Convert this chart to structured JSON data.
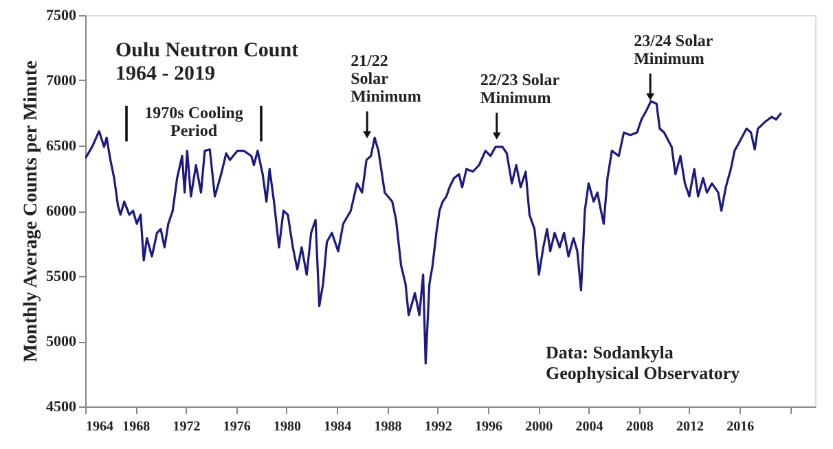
{
  "chart_data": {
    "type": "line",
    "title": "Oulu Neutron Count",
    "subtitle": "1964 - 2019",
    "ylabel": "Monthly Average Counts per Minute",
    "x": [
      1964.0,
      1964.55,
      1965.1,
      1965.5,
      1965.7,
      1966.0,
      1966.3,
      1966.6,
      1966.8,
      1967.1,
      1967.5,
      1967.8,
      1968.1,
      1968.4,
      1968.65,
      1968.9,
      1969.3,
      1969.7,
      1970.0,
      1970.3,
      1970.6,
      1970.95,
      1971.3,
      1971.7,
      1971.9,
      1972.1,
      1972.4,
      1972.8,
      1973.2,
      1973.5,
      1973.9,
      1974.3,
      1974.8,
      1975.2,
      1975.5,
      1976.1,
      1976.6,
      1977.2,
      1977.4,
      1977.7,
      1978.1,
      1978.4,
      1978.65,
      1979.0,
      1979.4,
      1979.75,
      1980.1,
      1980.5,
      1980.85,
      1981.2,
      1981.6,
      1981.95,
      1982.3,
      1982.6,
      1982.9,
      1983.2,
      1983.6,
      1984.1,
      1984.5,
      1985.1,
      1985.6,
      1986.0,
      1986.35,
      1986.7,
      1987.0,
      1987.3,
      1987.8,
      1988.4,
      1988.7,
      1989.1,
      1989.45,
      1989.7,
      1990.2,
      1990.55,
      1990.85,
      1991.05,
      1991.35,
      1991.6,
      1991.9,
      1992.15,
      1992.4,
      1992.7,
      1992.95,
      1993.3,
      1993.7,
      1993.95,
      1994.3,
      1994.8,
      1995.3,
      1995.8,
      1996.2,
      1996.6,
      1997.15,
      1997.5,
      1997.9,
      1998.25,
      1998.6,
      1999.0,
      1999.3,
      1999.7,
      2000.05,
      2000.4,
      2000.7,
      2000.95,
      2001.3,
      2001.7,
      2002.05,
      2002.4,
      2002.8,
      2003.1,
      2003.4,
      2003.7,
      2004.0,
      2004.4,
      2004.7,
      2004.9,
      2005.2,
      2005.5,
      2005.85,
      2006.4,
      2006.8,
      2007.3,
      2007.85,
      2008.2,
      2008.6,
      2008.95,
      2009.4,
      2009.65,
      2010.0,
      2010.6,
      2010.9,
      2011.3,
      2011.65,
      2012.0,
      2012.4,
      2012.7,
      2013.1,
      2013.4,
      2013.8,
      2014.3,
      2014.55,
      2014.9,
      2015.3,
      2015.6,
      2016.0,
      2016.55,
      2016.9,
      2017.2,
      2017.45,
      2018.0,
      2018.55,
      2018.9,
      2019.3
    ],
    "series": [
      {
        "color": "#1a1a80",
        "values": [
          6400,
          6490,
          6610,
          6490,
          6560,
          6390,
          6250,
          6040,
          5970,
          6070,
          5970,
          6000,
          5900,
          5970,
          5620,
          5790,
          5650,
          5830,
          5860,
          5720,
          5900,
          6000,
          6250,
          6420,
          6140,
          6460,
          6110,
          6350,
          6140,
          6460,
          6470,
          6110,
          6280,
          6440,
          6390,
          6460,
          6460,
          6420,
          6350,
          6460,
          6280,
          6070,
          6320,
          6070,
          5720,
          6000,
          5970,
          5720,
          5550,
          5720,
          5510,
          5830,
          5930,
          5270,
          5440,
          5760,
          5830,
          5690,
          5900,
          6000,
          6210,
          6140,
          6390,
          6420,
          6560,
          6460,
          6140,
          6070,
          5930,
          5580,
          5440,
          5200,
          5370,
          5200,
          5510,
          4830,
          5440,
          5580,
          5830,
          6000,
          6070,
          6110,
          6180,
          6250,
          6280,
          6180,
          6320,
          6300,
          6350,
          6460,
          6420,
          6490,
          6490,
          6440,
          6210,
          6350,
          6180,
          6300,
          5970,
          5860,
          5510,
          5720,
          5860,
          5690,
          5830,
          5720,
          5830,
          5650,
          5790,
          5690,
          5390,
          6000,
          6210,
          6070,
          6140,
          6040,
          5900,
          6250,
          6460,
          6420,
          6600,
          6580,
          6600,
          6700,
          6770,
          6840,
          6820,
          6630,
          6600,
          6490,
          6280,
          6420,
          6210,
          6110,
          6320,
          6110,
          6250,
          6140,
          6210,
          6140,
          6000,
          6180,
          6320,
          6460,
          6530,
          6630,
          6600,
          6470,
          6630,
          6680,
          6720,
          6700,
          6750
        ]
      }
    ],
    "xlim": [
      1964,
      2022
    ],
    "xticks": [
      1964,
      1968,
      1972,
      1976,
      1980,
      1984,
      1988,
      1992,
      1996,
      2000,
      2004,
      2008,
      2012,
      2016,
      {
        "value": 2020,
        "label": null
      }
    ],
    "ylim": [
      4500,
      7500
    ],
    "yticks": [
      4500,
      5000,
      5500,
      6000,
      6500,
      7000,
      7500
    ],
    "grid": false,
    "marker": "none",
    "line_style": "solid",
    "annotations": [
      "1970s Cooling\nPeriod",
      {
        "text": "21/22\nSolar\nMinimum",
        "x": 1986.4,
        "y": 6530
      },
      {
        "text": "22/23 Solar\nMinimum",
        "x": 1996.7,
        "y": 6520
      },
      {
        "text": "23/24 Solar\nMinimum",
        "x": 2008.9,
        "y": 6820
      },
      "Data:  Sodankyla\nGeophysical Observatory"
    ]
  }
}
